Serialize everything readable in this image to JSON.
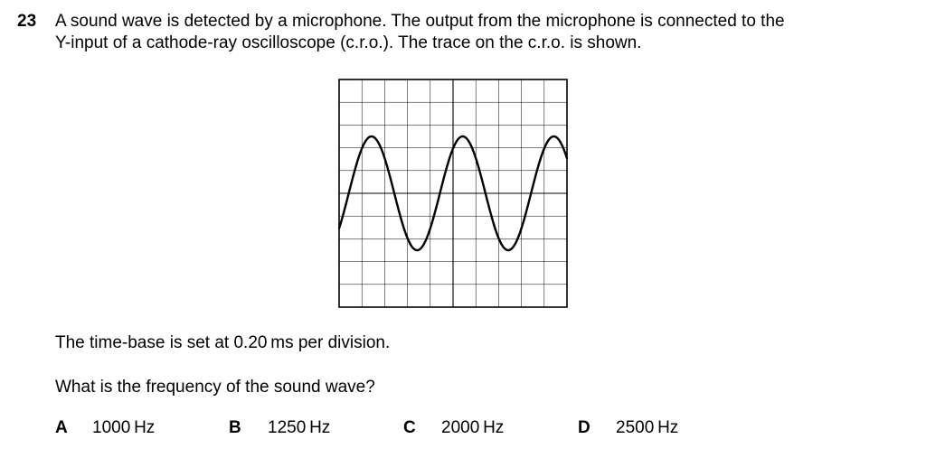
{
  "question": {
    "number": "23",
    "stem_lines": [
      "A sound wave is detected by a microphone. The output from the microphone is connected to the",
      "Y-input of a cathode-ray oscilloscope (c.r.o.). The trace on the c.r.o. is shown."
    ],
    "timebase_text": "The time-base is set at 0.20 ms per division.",
    "prompt": "What is the frequency of the sound wave?",
    "options": [
      {
        "letter": "A",
        "value": "1000 Hz"
      },
      {
        "letter": "B",
        "value": "1250 Hz"
      },
      {
        "letter": "C",
        "value": "2000 Hz"
      },
      {
        "letter": "D",
        "value": "2500 Hz"
      }
    ]
  },
  "oscilloscope": {
    "grid_divisions_x": 10,
    "grid_divisions_y": 10,
    "trace": {
      "amplitude_divisions": 2.5,
      "period_divisions": 4,
      "start_phase_deg": -38
    }
  }
}
